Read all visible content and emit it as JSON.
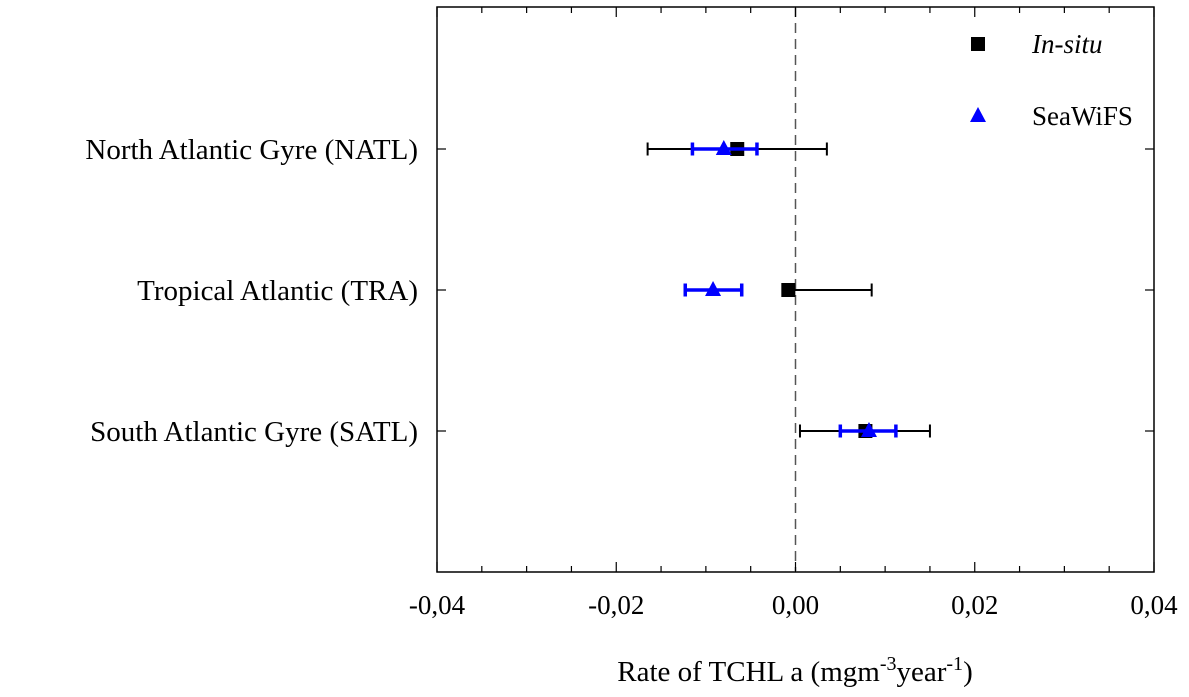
{
  "chart_data": {
    "type": "scatter",
    "orientation": "horizontal",
    "categories": [
      "North Atlantic Gyre (NATL)",
      "Tropical Atlantic (TRA)",
      "South Atlantic Gyre (SATL)"
    ],
    "xlim": [
      -0.04,
      0.04
    ],
    "xticks": [
      -0.04,
      -0.02,
      0.0,
      0.02,
      0.04
    ],
    "xtick_labels": [
      "-0,04",
      "-0,02",
      "0,00",
      "0,02",
      "0,04"
    ],
    "xlabel": {
      "prefix": "Rate of TCHL a (mgm",
      "sup1": "-3",
      "mid": "year",
      "sup2": "-1",
      "suffix": ")"
    },
    "reference_line": {
      "x": 0.0,
      "style": "dashed"
    },
    "grid": false,
    "legend_position": "top-right",
    "series": [
      {
        "name": "In-situ",
        "marker": "square",
        "color": "#000000",
        "values": [
          -0.0065,
          -0.0008,
          0.0078
        ],
        "ci_low": [
          -0.0165,
          -0.0008,
          0.0005
        ],
        "ci_high": [
          0.0035,
          0.0085,
          0.015
        ]
      },
      {
        "name": "SeaWiFS",
        "marker": "triangle",
        "color": "#0000ff",
        "values": [
          -0.008,
          -0.0092,
          0.0082
        ],
        "ci_low": [
          -0.0115,
          -0.0123,
          0.005
        ],
        "ci_high": [
          -0.0043,
          -0.006,
          0.0112
        ]
      }
    ]
  }
}
